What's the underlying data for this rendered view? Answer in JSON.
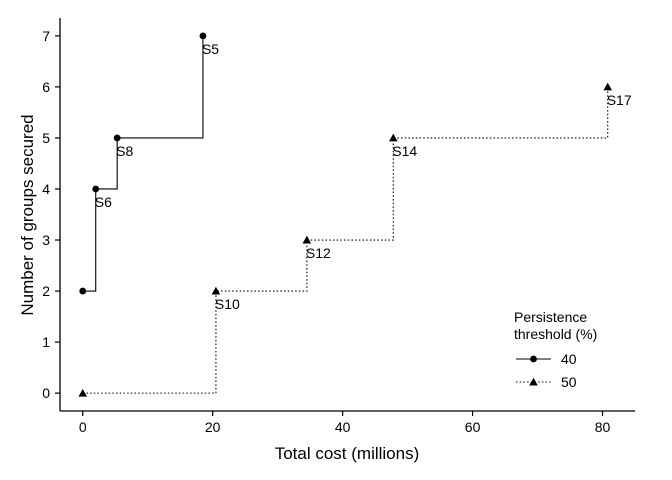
{
  "chart_data": {
    "type": "line",
    "step": true,
    "xlabel": "Total cost (millions)",
    "ylabel": "Number of groups secured",
    "xlim": [
      -3.5,
      85
    ],
    "ylim": [
      -0.35,
      7.35
    ],
    "xticks": [
      0,
      20,
      40,
      60,
      80
    ],
    "yticks": [
      0,
      1,
      2,
      3,
      4,
      5,
      6,
      7
    ],
    "grid": false,
    "legend": {
      "title_line1": "Persistence",
      "title_line2": "threshold (%)",
      "placement": "bottom-right"
    },
    "series": [
      {
        "name": "40",
        "marker": "circle",
        "line_style": "solid",
        "points": [
          {
            "x": 0,
            "y": 2,
            "label": ""
          },
          {
            "x": 2,
            "y": 4,
            "label": "S6"
          },
          {
            "x": 5.3,
            "y": 5,
            "label": "S8"
          },
          {
            "x": 18.5,
            "y": 7,
            "label": "S5"
          }
        ]
      },
      {
        "name": "50",
        "marker": "triangle",
        "line_style": "dotted",
        "points": [
          {
            "x": 0,
            "y": 0,
            "label": ""
          },
          {
            "x": 20.5,
            "y": 2,
            "label": "S10"
          },
          {
            "x": 34.5,
            "y": 3,
            "label": "S12"
          },
          {
            "x": 47.8,
            "y": 5,
            "label": "S14"
          },
          {
            "x": 80.8,
            "y": 6,
            "label": "S17"
          }
        ]
      }
    ]
  }
}
